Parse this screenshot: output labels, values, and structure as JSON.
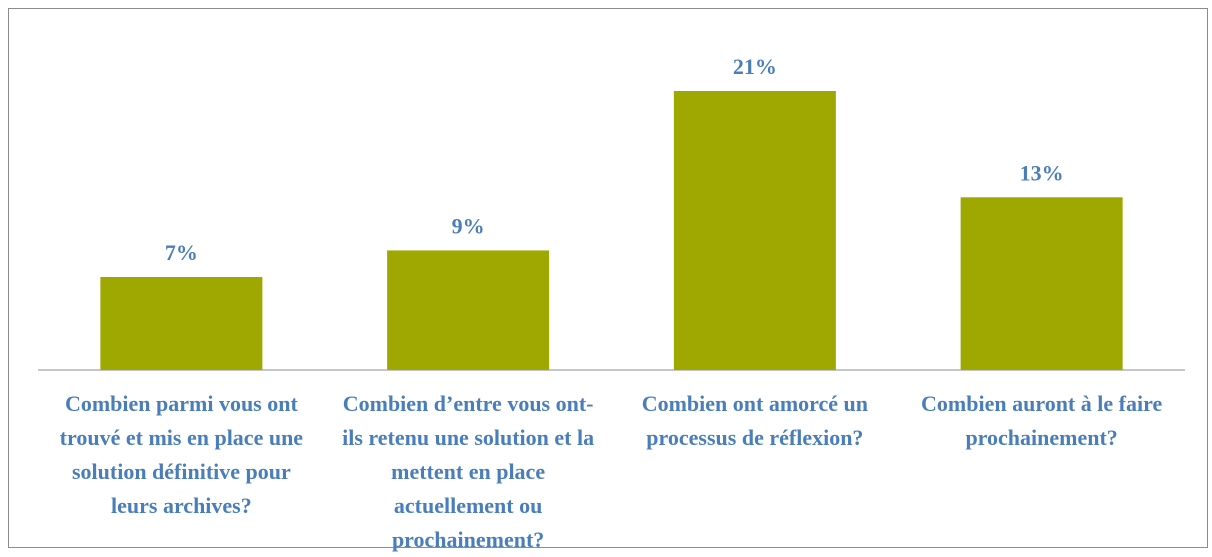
{
  "chart_data": {
    "type": "bar",
    "categories": [
      "Combien parmi vous ont trouvé et mis en place une solution définitive pour leurs archives?",
      "Combien d’entre vous ont-ils retenu une solution et la mettent en place actuellement ou prochainement?",
      "Combien ont amorcé un processus de réflexion?",
      "Combien auront à le faire prochainement?"
    ],
    "values": [
      7,
      9,
      21,
      13
    ],
    "value_labels": [
      "7%",
      "9%",
      "21%",
      "13%"
    ],
    "color": "#9fa800"
  }
}
